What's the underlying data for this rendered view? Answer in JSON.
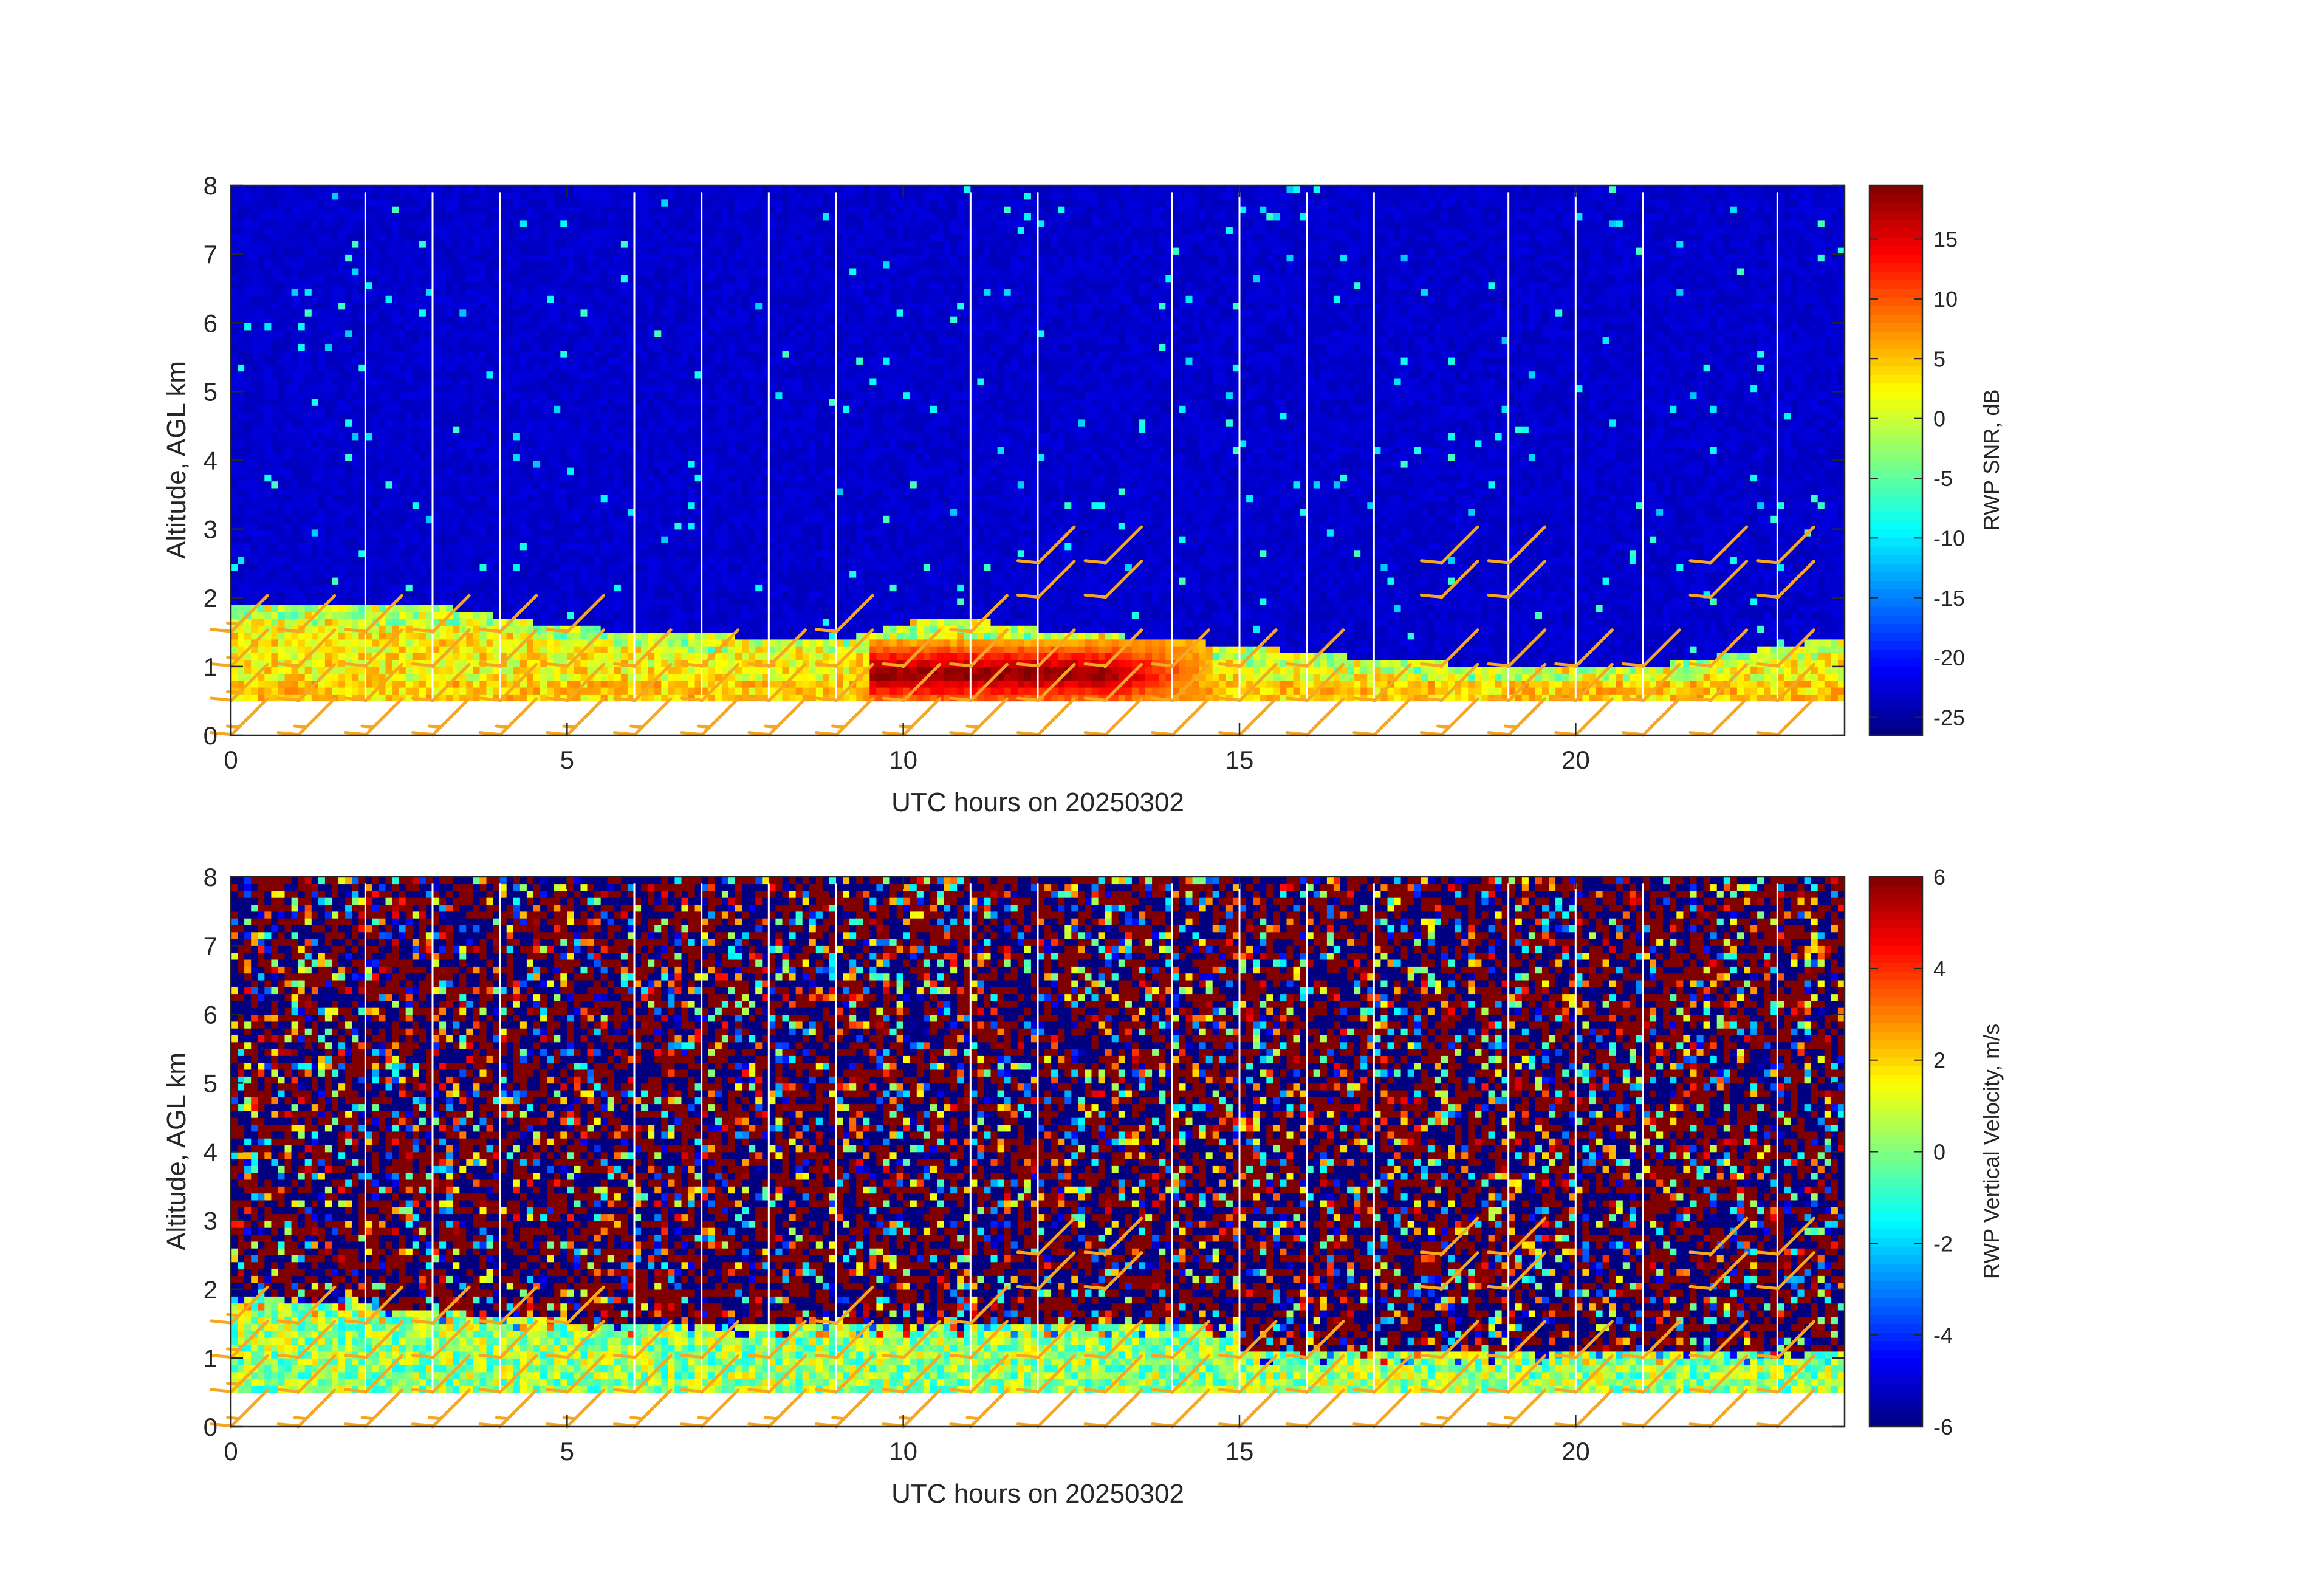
{
  "figure": {
    "background": "#ffffff"
  },
  "chart_data": [
    {
      "type": "heatmap",
      "title": "",
      "xlabel": "UTC hours on 20250302",
      "ylabel": "Altitude, AGL km",
      "xlim": [
        0,
        24
      ],
      "ylim": [
        0,
        8
      ],
      "xticks": [
        0,
        5,
        10,
        15,
        20
      ],
      "yticks": [
        0,
        1,
        2,
        3,
        4,
        5,
        6,
        7,
        8
      ],
      "colormap": "jet",
      "colorbar": {
        "label": "RWP SNR, dB",
        "range": [
          -26.5,
          19.5
        ],
        "ticks": [
          -25,
          -20,
          -15,
          -10,
          -5,
          0,
          5,
          10,
          15
        ]
      },
      "field": "snr",
      "data_gaps_hours": [
        2.0,
        3.0,
        4.0,
        6.0,
        7.0,
        8.0,
        9.0,
        11.0,
        12.0,
        14.0,
        15.0,
        16.0,
        17.0,
        19.0,
        20.0,
        21.0,
        23.0
      ],
      "lowest_range_gate_km": 0.5,
      "top_range_gate_km": 7.9,
      "boundary_layer_top_km": [
        {
          "hour": 0,
          "km": 1.85
        },
        {
          "hour": 3,
          "km": 1.85
        },
        {
          "hour": 4.5,
          "km": 1.6
        },
        {
          "hour": 6,
          "km": 1.45
        },
        {
          "hour": 9,
          "km": 1.35
        },
        {
          "hour": 10.5,
          "km": 1.7
        },
        {
          "hour": 12,
          "km": 1.5
        },
        {
          "hour": 14.5,
          "km": 1.3
        },
        {
          "hour": 16.5,
          "km": 1.1
        },
        {
          "hour": 18,
          "km": 1.0
        },
        {
          "hour": 21,
          "km": 0.95
        },
        {
          "hour": 24,
          "km": 1.4
        }
      ],
      "enhanced_layer": {
        "hour_start": 9.5,
        "hour_end": 14.5,
        "km_bottom": 0.5,
        "km_top": 1.3,
        "peak_db": 18
      }
    },
    {
      "type": "heatmap",
      "title": "",
      "xlabel": "UTC hours on 20250302",
      "ylabel": "Altitude, AGL km",
      "xlim": [
        0,
        24
      ],
      "ylim": [
        0,
        8
      ],
      "xticks": [
        0,
        5,
        10,
        15,
        20
      ],
      "yticks": [
        0,
        1,
        2,
        3,
        4,
        5,
        6,
        7,
        8
      ],
      "colormap": "jet",
      "colorbar": {
        "label": "RWP Vertical Velocity, m/s",
        "range": [
          -6,
          6
        ],
        "ticks": [
          -6,
          -4,
          -2,
          0,
          2,
          4,
          6
        ]
      },
      "field": "vertical_velocity",
      "data_gaps_hours": [
        2.0,
        3.0,
        4.0,
        6.0,
        7.0,
        8.0,
        9.0,
        11.0,
        12.0,
        14.0,
        15.0,
        16.0,
        17.0,
        19.0,
        20.0,
        21.0,
        23.0
      ],
      "lowest_range_gate_km": 0.5,
      "top_range_gate_km": 7.9
    }
  ],
  "wind_barbs": {
    "color": "#f5a623",
    "times_hours": [
      0,
      1,
      2,
      3,
      4,
      5,
      6,
      7,
      8,
      9,
      10,
      11,
      12,
      13,
      14,
      15,
      16,
      17,
      18,
      19,
      20,
      21,
      22,
      23
    ],
    "altitudes_km": [
      0,
      0.5,
      1.0,
      1.5,
      2.0,
      2.5
    ],
    "barbs": [
      {
        "hour": 0,
        "km": 0.0,
        "kt": 15
      },
      {
        "hour": 1,
        "km": 0.0,
        "kt": 15
      },
      {
        "hour": 2,
        "km": 0.0,
        "kt": 15
      },
      {
        "hour": 3,
        "km": 0.0,
        "kt": 15
      },
      {
        "hour": 4,
        "km": 0.0,
        "kt": 15
      },
      {
        "hour": 5,
        "km": 0.0,
        "kt": 15
      },
      {
        "hour": 6,
        "km": 0.0,
        "kt": 15
      },
      {
        "hour": 7,
        "km": 0.0,
        "kt": 15
      },
      {
        "hour": 8,
        "km": 0.0,
        "kt": 15
      },
      {
        "hour": 9,
        "km": 0.0,
        "kt": 15
      },
      {
        "hour": 10,
        "km": 0.0,
        "kt": 15
      },
      {
        "hour": 11,
        "km": 0.0,
        "kt": 15
      },
      {
        "hour": 12,
        "km": 0.0,
        "kt": 10
      },
      {
        "hour": 13,
        "km": 0.0,
        "kt": 10
      },
      {
        "hour": 14,
        "km": 0.0,
        "kt": 10
      },
      {
        "hour": 15,
        "km": 0.0,
        "kt": 10
      },
      {
        "hour": 16,
        "km": 0.0,
        "kt": 10
      },
      {
        "hour": 17,
        "km": 0.0,
        "kt": 10
      },
      {
        "hour": 18,
        "km": 0.0,
        "kt": 15
      },
      {
        "hour": 19,
        "km": 0.0,
        "kt": 15
      },
      {
        "hour": 20,
        "km": 0.0,
        "kt": 10
      },
      {
        "hour": 21,
        "km": 0.0,
        "kt": 10
      },
      {
        "hour": 22,
        "km": 0.0,
        "kt": 10
      },
      {
        "hour": 23,
        "km": 0.0,
        "kt": 10
      },
      {
        "hour": 0,
        "km": 0.5,
        "kt": 15
      },
      {
        "hour": 1,
        "km": 0.5,
        "kt": 10
      },
      {
        "hour": 2,
        "km": 0.5,
        "kt": 10
      },
      {
        "hour": 3,
        "km": 0.5,
        "kt": 10
      },
      {
        "hour": 4,
        "km": 0.5,
        "kt": 10
      },
      {
        "hour": 5,
        "km": 0.5,
        "kt": 10
      },
      {
        "hour": 6,
        "km": 0.5,
        "kt": 10
      },
      {
        "hour": 7,
        "km": 0.5,
        "kt": 10
      },
      {
        "hour": 8,
        "km": 0.5,
        "kt": 10
      },
      {
        "hour": 9,
        "km": 0.5,
        "kt": 10
      },
      {
        "hour": 10,
        "km": 0.5,
        "kt": 10
      },
      {
        "hour": 11,
        "km": 0.5,
        "kt": 10
      },
      {
        "hour": 12,
        "km": 0.5,
        "kt": 10
      },
      {
        "hour": 13,
        "km": 0.5,
        "kt": 10
      },
      {
        "hour": 14,
        "km": 0.5,
        "kt": 10
      },
      {
        "hour": 15,
        "km": 0.5,
        "kt": 10
      },
      {
        "hour": 16,
        "km": 0.5,
        "kt": 10
      },
      {
        "hour": 17,
        "km": 0.5,
        "kt": 10
      },
      {
        "hour": 18,
        "km": 0.5,
        "kt": 10
      },
      {
        "hour": 19,
        "km": 0.5,
        "kt": 10
      },
      {
        "hour": 20,
        "km": 0.5,
        "kt": 10
      },
      {
        "hour": 21,
        "km": 0.5,
        "kt": 10
      },
      {
        "hour": 22,
        "km": 0.5,
        "kt": 10
      },
      {
        "hour": 23,
        "km": 0.5,
        "kt": 10
      },
      {
        "hour": 0,
        "km": 1.0,
        "kt": 15
      },
      {
        "hour": 1,
        "km": 1.0,
        "kt": 10
      },
      {
        "hour": 2,
        "km": 1.0,
        "kt": 10
      },
      {
        "hour": 3,
        "km": 1.0,
        "kt": 10
      },
      {
        "hour": 4,
        "km": 1.0,
        "kt": 10
      },
      {
        "hour": 5,
        "km": 1.0,
        "kt": 10
      },
      {
        "hour": 6,
        "km": 1.0,
        "kt": 10
      },
      {
        "hour": 7,
        "km": 1.0,
        "kt": 10
      },
      {
        "hour": 8,
        "km": 1.0,
        "kt": 10
      },
      {
        "hour": 9,
        "km": 1.0,
        "kt": 10
      },
      {
        "hour": 10,
        "km": 1.0,
        "kt": 10
      },
      {
        "hour": 11,
        "km": 1.0,
        "kt": 10
      },
      {
        "hour": 12,
        "km": 1.0,
        "kt": 10
      },
      {
        "hour": 13,
        "km": 1.0,
        "kt": 10
      },
      {
        "hour": 14,
        "km": 1.0,
        "kt": 10
      },
      {
        "hour": 15,
        "km": 1.0,
        "kt": 10
      },
      {
        "hour": 16,
        "km": 1.0,
        "kt": 10
      },
      {
        "hour": 18,
        "km": 1.0,
        "kt": 10
      },
      {
        "hour": 19,
        "km": 1.0,
        "kt": 10
      },
      {
        "hour": 20,
        "km": 1.0,
        "kt": 10
      },
      {
        "hour": 21,
        "km": 1.0,
        "kt": 10
      },
      {
        "hour": 22,
        "km": 1.0,
        "kt": 10
      },
      {
        "hour": 23,
        "km": 1.0,
        "kt": 10
      },
      {
        "hour": 0,
        "km": 1.5,
        "kt": 15
      },
      {
        "hour": 1,
        "km": 1.5,
        "kt": 10
      },
      {
        "hour": 2,
        "km": 1.5,
        "kt": 10
      },
      {
        "hour": 3,
        "km": 1.5,
        "kt": 10
      },
      {
        "hour": 4,
        "km": 1.5,
        "kt": 10
      },
      {
        "hour": 5,
        "km": 1.5,
        "kt": 10
      },
      {
        "hour": 9,
        "km": 1.5,
        "kt": 10
      },
      {
        "hour": 11,
        "km": 1.5,
        "kt": 10
      },
      {
        "hour": 12,
        "km": 2.0,
        "kt": 10
      },
      {
        "hour": 13,
        "km": 2.0,
        "kt": 10
      },
      {
        "hour": 18,
        "km": 2.0,
        "kt": 10
      },
      {
        "hour": 19,
        "km": 2.0,
        "kt": 10
      },
      {
        "hour": 22,
        "km": 2.0,
        "kt": 10
      },
      {
        "hour": 23,
        "km": 2.0,
        "kt": 10
      },
      {
        "hour": 12,
        "km": 2.5,
        "kt": 10
      },
      {
        "hour": 13,
        "km": 2.5,
        "kt": 10
      },
      {
        "hour": 18,
        "km": 2.5,
        "kt": 10
      },
      {
        "hour": 19,
        "km": 2.5,
        "kt": 10
      },
      {
        "hour": 22,
        "km": 2.5,
        "kt": 10
      },
      {
        "hour": 23,
        "km": 2.5,
        "kt": 10
      }
    ]
  }
}
